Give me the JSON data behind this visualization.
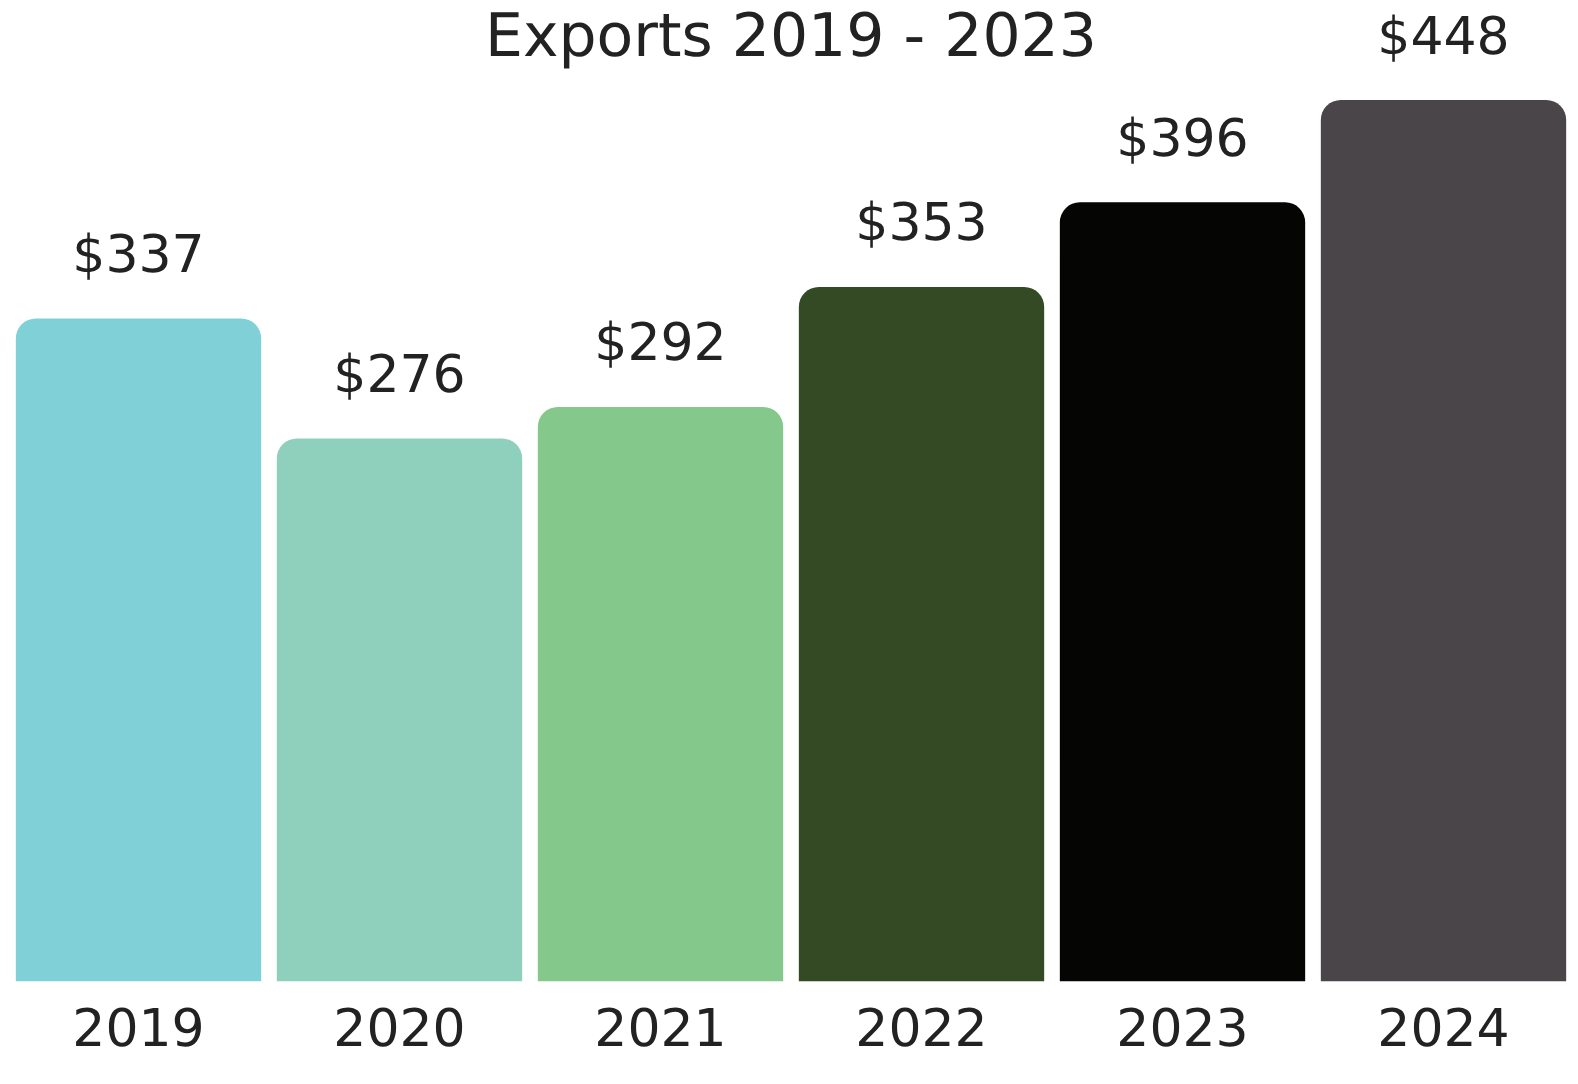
{
  "chart_data": {
    "type": "bar",
    "title": "Exports 2019 - 2023",
    "categories": [
      "2019",
      "2020",
      "2021",
      "2022",
      "2023",
      "2024"
    ],
    "values": [
      337,
      276,
      292,
      353,
      396,
      448
    ],
    "colors": [
      "#7fd1d7",
      "#8fd0bd",
      "#84c88b",
      "#344a25",
      "#050504",
      "#4a4548"
    ],
    "value_labels": [
      "$337",
      "$276",
      "$292",
      "$353",
      "$396",
      "$448"
    ],
    "grid": false,
    "legend": false
  }
}
